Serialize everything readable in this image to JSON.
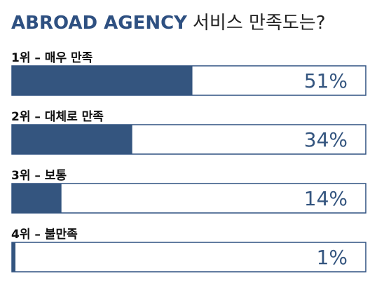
{
  "chart_data": {
    "type": "bar",
    "orientation": "horizontal",
    "title_parts": [
      "ABROAD AGENCY",
      "서비스 만족도는?"
    ],
    "title_colors": [
      "#2e5081",
      "#222222"
    ],
    "categories": [
      "1위 – 매우 만족",
      "2위 – 대체로 만족",
      "3위 – 보통",
      "4위 – 불만족"
    ],
    "values": [
      51,
      34,
      14,
      1
    ],
    "value_labels": [
      "51%",
      "34%",
      "14%",
      "1%"
    ],
    "xlim": [
      0,
      100
    ],
    "color": "#34557f",
    "border_color": "#2e5081"
  }
}
